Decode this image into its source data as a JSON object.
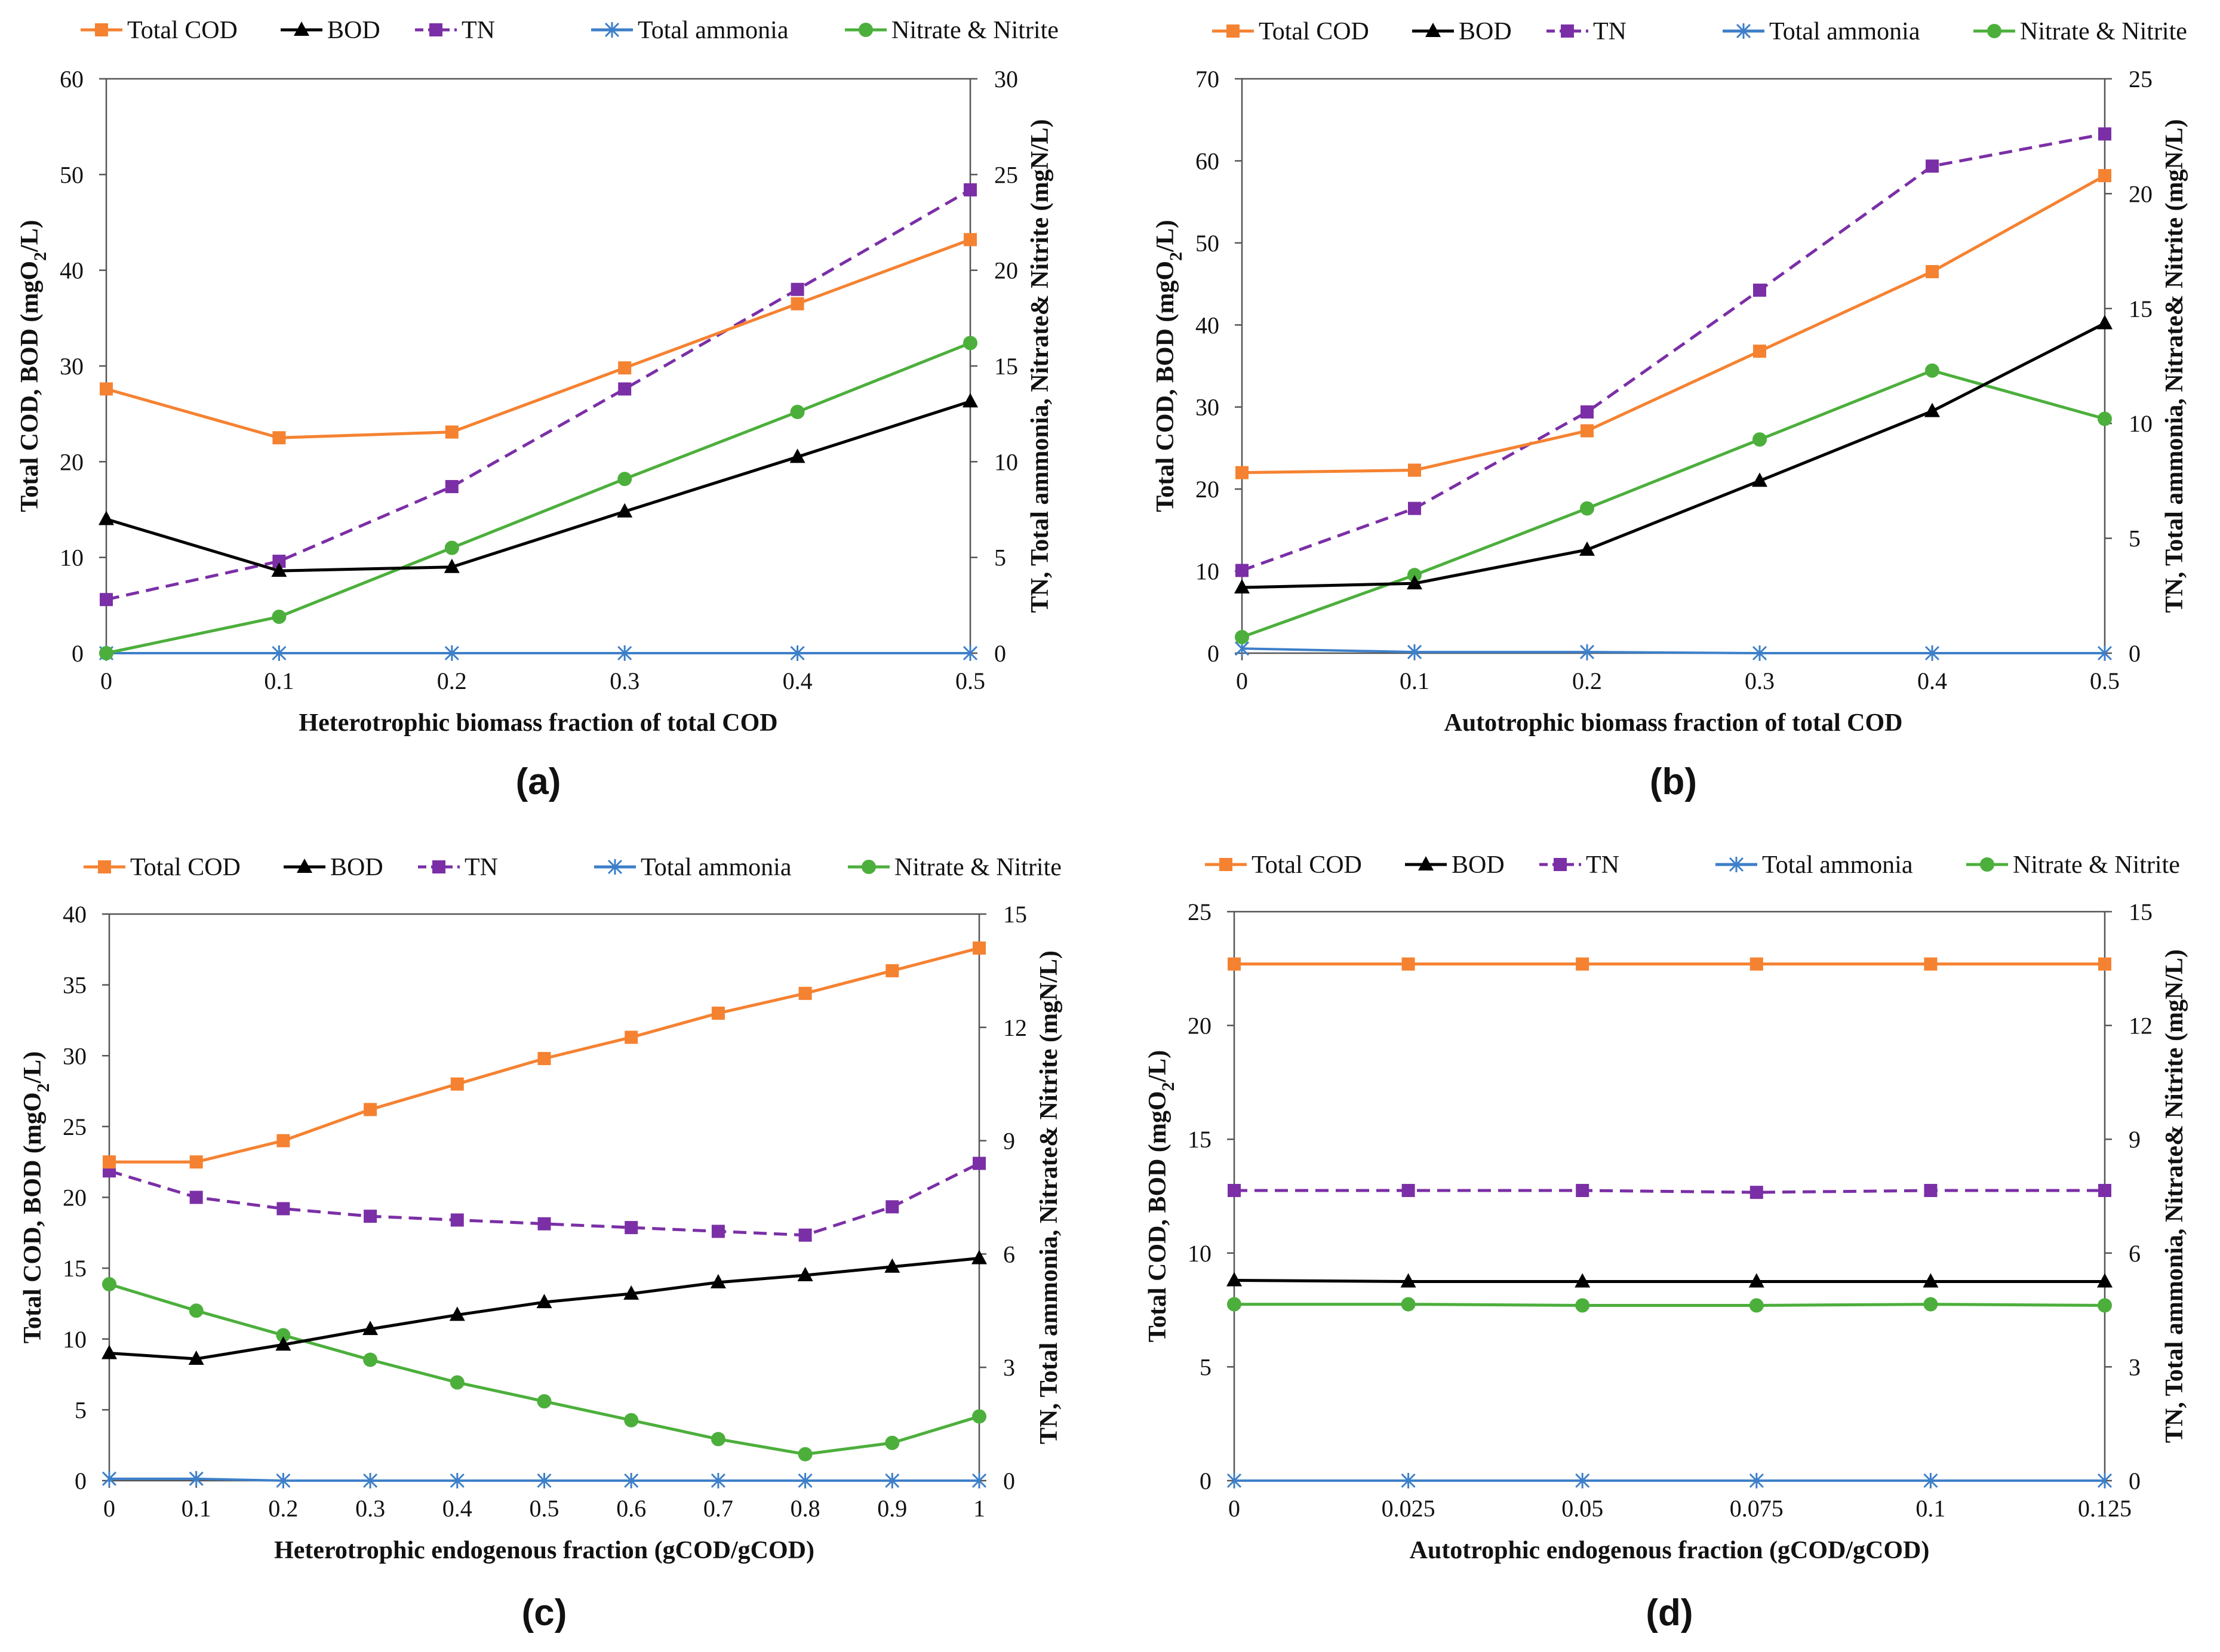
{
  "colors": {
    "Total COD": "#f58231",
    "BOD": "#000000",
    "TN": "#7b2fa6",
    "Total ammonia": "#3d7fc9",
    "Nitrate & Nitrite": "#4caf3c"
  },
  "legend": [
    "Total COD",
    "BOD",
    "TN",
    "Total ammonia",
    "Nitrate & Nitrite"
  ],
  "chart_data": [
    {
      "type": "line",
      "panel": "(a)",
      "xlabel": "Heterotrophic biomass fraction of total COD",
      "ylabel_left": "Total COD, BOD (mgO2/L)",
      "ylabel_right": "TN, Total ammonia, Nitrate& Nitrite (mgN/L)",
      "x": [
        0,
        0.1,
        0.2,
        0.3,
        0.4,
        0.5
      ],
      "x_tick_labels": [
        "0",
        "0.1",
        "0.2",
        "0.3",
        "0.4",
        "0.5"
      ],
      "ylim_left": [
        0,
        60
      ],
      "y_ticks_left": [
        0,
        10,
        20,
        30,
        40,
        50,
        60
      ],
      "ylim_right": [
        0,
        30
      ],
      "y_ticks_right": [
        0,
        5,
        10,
        15,
        20,
        25,
        30
      ],
      "series": [
        {
          "name": "Total COD",
          "axis": "left",
          "marker": "square",
          "dash": false,
          "values": [
            27.6,
            22.5,
            23.1,
            29.8,
            36.5,
            43.2
          ]
        },
        {
          "name": "BOD",
          "axis": "left",
          "marker": "triangle",
          "dash": false,
          "values": [
            14.0,
            8.6,
            9.0,
            14.8,
            20.5,
            26.3
          ]
        },
        {
          "name": "TN",
          "axis": "right",
          "marker": "square",
          "dash": true,
          "values": [
            2.8,
            4.8,
            8.7,
            13.8,
            19.0,
            24.2
          ]
        },
        {
          "name": "Total ammonia",
          "axis": "right",
          "marker": "star",
          "dash": false,
          "values": [
            0,
            0,
            0,
            0,
            0,
            0
          ]
        },
        {
          "name": "Nitrate & Nitrite",
          "axis": "right",
          "marker": "circle",
          "dash": false,
          "values": [
            0,
            1.9,
            5.5,
            9.1,
            12.6,
            16.2
          ]
        }
      ]
    },
    {
      "type": "line",
      "panel": "(b)",
      "xlabel": "Autotrophic biomass fraction of total COD",
      "ylabel_left": "Total COD, BOD (mgO2/L)",
      "ylabel_right": "TN, Total ammonia, Nitrate& Nitrite (mgN/L)",
      "x": [
        0,
        0.1,
        0.2,
        0.3,
        0.4,
        0.5
      ],
      "x_tick_labels": [
        "0",
        "0.1",
        "0.2",
        "0.3",
        "0.4",
        "0.5"
      ],
      "ylim_left": [
        0,
        70
      ],
      "y_ticks_left": [
        0,
        10,
        20,
        30,
        40,
        50,
        60,
        70
      ],
      "ylim_right": [
        0,
        25
      ],
      "y_ticks_right": [
        0,
        5,
        10,
        15,
        20,
        25
      ],
      "series": [
        {
          "name": "Total COD",
          "axis": "left",
          "marker": "square",
          "dash": false,
          "values": [
            22.0,
            22.3,
            27.1,
            36.8,
            46.5,
            58.2
          ]
        },
        {
          "name": "BOD",
          "axis": "left",
          "marker": "triangle",
          "dash": false,
          "values": [
            8.0,
            8.5,
            12.6,
            21.0,
            29.5,
            40.2
          ]
        },
        {
          "name": "TN",
          "axis": "right",
          "marker": "square",
          "dash": true,
          "values": [
            3.6,
            6.3,
            10.5,
            15.8,
            21.2,
            22.6
          ]
        },
        {
          "name": "Total ammonia",
          "axis": "right",
          "marker": "star",
          "dash": false,
          "values": [
            0.2,
            0.05,
            0.05,
            0,
            0,
            0
          ]
        },
        {
          "name": "Nitrate & Nitrite",
          "axis": "right",
          "marker": "circle",
          "dash": false,
          "values": [
            0.7,
            3.4,
            6.3,
            9.3,
            12.3,
            10.2
          ]
        }
      ]
    },
    {
      "type": "line",
      "panel": "(c)",
      "xlabel": "Heterotrophic endogenous fraction (gCOD/gCOD)",
      "ylabel_left": "Total COD, BOD (mgO2/L)",
      "ylabel_right": "TN, Total ammonia, Nitrate& Nitrite (mgN/L)",
      "x": [
        0,
        0.1,
        0.2,
        0.3,
        0.4,
        0.5,
        0.6,
        0.7,
        0.8,
        0.9,
        1
      ],
      "x_tick_labels": [
        "0",
        "0.1",
        "0.2",
        "0.3",
        "0.4",
        "0.5",
        "0.6",
        "0.7",
        "0.8",
        "0.9",
        "1"
      ],
      "ylim_left": [
        0,
        40
      ],
      "y_ticks_left": [
        0,
        5,
        10,
        15,
        20,
        25,
        30,
        35,
        40
      ],
      "ylim_right": [
        0,
        15
      ],
      "y_ticks_right": [
        0,
        3,
        6,
        9,
        12,
        15
      ],
      "series": [
        {
          "name": "Total COD",
          "axis": "left",
          "marker": "square",
          "dash": false,
          "values": [
            22.5,
            22.5,
            24.0,
            26.2,
            28.0,
            29.8,
            31.3,
            33.0,
            34.4,
            36.0,
            37.6
          ]
        },
        {
          "name": "BOD",
          "axis": "left",
          "marker": "triangle",
          "dash": false,
          "values": [
            9.0,
            8.6,
            9.6,
            10.7,
            11.7,
            12.6,
            13.2,
            14.0,
            14.5,
            15.1,
            15.7
          ]
        },
        {
          "name": "TN",
          "axis": "right",
          "marker": "square",
          "dash": true,
          "values": [
            8.2,
            7.5,
            7.2,
            7.0,
            6.9,
            6.8,
            6.7,
            6.6,
            6.5,
            7.25,
            8.4
          ]
        },
        {
          "name": "Total ammonia",
          "axis": "right",
          "marker": "star",
          "dash": false,
          "values": [
            0.05,
            0.05,
            0,
            0,
            0,
            0,
            0,
            0,
            0,
            0,
            0
          ]
        },
        {
          "name": "Nitrate & Nitrite",
          "axis": "right",
          "marker": "circle",
          "dash": false,
          "values": [
            5.2,
            4.5,
            3.85,
            3.2,
            2.6,
            2.1,
            1.6,
            1.1,
            0.7,
            1.0,
            1.7
          ]
        }
      ]
    },
    {
      "type": "line",
      "panel": "(d)",
      "xlabel": "Autotrophic endogenous fraction (gCOD/gCOD)",
      "ylabel_left": "Total COD, BOD (mgO2/L)",
      "ylabel_right": "TN, Total ammonia, Nitrate& Nitrite (mgN/L)",
      "x": [
        0,
        0.025,
        0.05,
        0.075,
        0.1,
        0.125
      ],
      "x_tick_labels": [
        "0",
        "0.025",
        "0.05",
        "0.075",
        "0.1",
        "0.125"
      ],
      "ylim_left": [
        0,
        25
      ],
      "y_ticks_left": [
        0,
        5,
        10,
        15,
        20,
        25
      ],
      "ylim_right": [
        0,
        15
      ],
      "y_ticks_right": [
        0,
        3,
        6,
        9,
        12,
        15
      ],
      "series": [
        {
          "name": "Total COD",
          "axis": "left",
          "marker": "square",
          "dash": false,
          "values": [
            22.7,
            22.7,
            22.7,
            22.7,
            22.7,
            22.7
          ]
        },
        {
          "name": "BOD",
          "axis": "left",
          "marker": "triangle",
          "dash": false,
          "values": [
            8.8,
            8.75,
            8.75,
            8.75,
            8.75,
            8.75
          ]
        },
        {
          "name": "TN",
          "axis": "right",
          "marker": "square",
          "dash": true,
          "values": [
            7.65,
            7.65,
            7.65,
            7.6,
            7.65,
            7.65
          ]
        },
        {
          "name": "Total ammonia",
          "axis": "right",
          "marker": "star",
          "dash": false,
          "values": [
            0,
            0,
            0,
            0,
            0,
            0
          ]
        },
        {
          "name": "Nitrate & Nitrite",
          "axis": "right",
          "marker": "circle",
          "dash": false,
          "values": [
            4.65,
            4.65,
            4.62,
            4.62,
            4.65,
            4.62
          ]
        }
      ]
    }
  ]
}
